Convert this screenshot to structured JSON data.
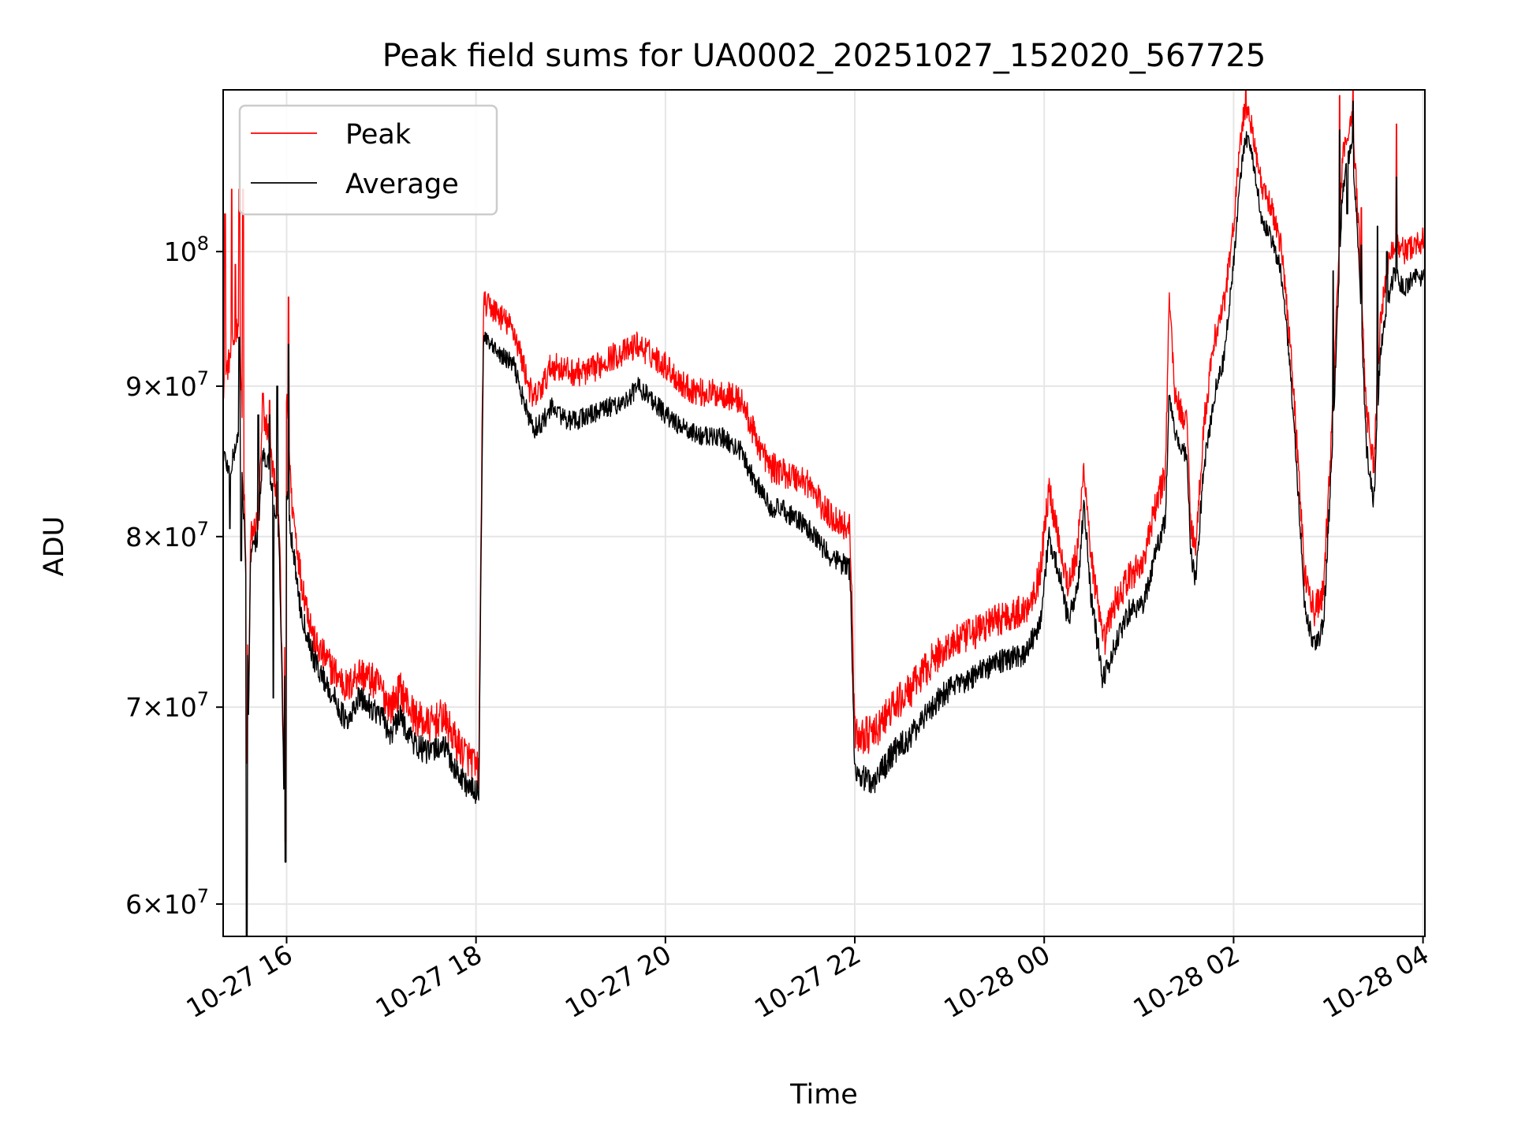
{
  "chart_data": {
    "type": "line",
    "title": "Peak field sums for UA0002_20251027_152020_567725",
    "xlabel": "Time",
    "ylabel": "ADU",
    "yscale": "log",
    "grid": true,
    "xlim": [
      15.33,
      28.02
    ],
    "ylim": [
      58500000,
      113500000
    ],
    "x_unit": "hours since 2025-10-27 00:00",
    "xticks": [
      {
        "value": 16,
        "label": "10-27 16"
      },
      {
        "value": 18,
        "label": "10-27 18"
      },
      {
        "value": 20,
        "label": "10-27 20"
      },
      {
        "value": 22,
        "label": "10-27 22"
      },
      {
        "value": 24,
        "label": "10-28 00"
      },
      {
        "value": 26,
        "label": "10-28 02"
      },
      {
        "value": 28,
        "label": "10-28 04"
      }
    ],
    "yticks": [
      {
        "value": 60000000,
        "base": "6",
        "exp": "7",
        "style": "mult"
      },
      {
        "value": 70000000,
        "base": "7",
        "exp": "7",
        "style": "mult"
      },
      {
        "value": 80000000,
        "base": "8",
        "exp": "7",
        "style": "mult"
      },
      {
        "value": 90000000,
        "base": "9",
        "exp": "7",
        "style": "mult"
      },
      {
        "value": 100000000,
        "base": "10",
        "exp": "8",
        "style": "pow"
      }
    ],
    "legend": {
      "position": "upper-left",
      "entries": [
        "Peak",
        "Average"
      ]
    },
    "series": [
      {
        "name": "Average",
        "color": "#000000",
        "noise": 700000,
        "points": [
          [
            15.33,
            85500000
          ],
          [
            15.4,
            84000000
          ],
          [
            15.5,
            87000000
          ],
          [
            15.56,
            80000000
          ],
          [
            15.6,
            69500000
          ],
          [
            15.62,
            79000000
          ],
          [
            15.7,
            80000000
          ],
          [
            15.75,
            85500000
          ],
          [
            15.8,
            85000000
          ],
          [
            15.85,
            83000000
          ],
          [
            15.92,
            80000000
          ],
          [
            15.97,
            66000000
          ],
          [
            16.0,
            83000000
          ],
          [
            16.05,
            80000000
          ],
          [
            16.15,
            75500000
          ],
          [
            16.3,
            72500000
          ],
          [
            16.5,
            70500000
          ],
          [
            16.65,
            69000000
          ],
          [
            16.75,
            70500000
          ],
          [
            16.9,
            70000000
          ],
          [
            17.0,
            69500000
          ],
          [
            17.1,
            68500000
          ],
          [
            17.2,
            69500000
          ],
          [
            17.35,
            68000000
          ],
          [
            17.5,
            67500000
          ],
          [
            17.65,
            68000000
          ],
          [
            17.8,
            66500000
          ],
          [
            17.97,
            65500000
          ],
          [
            18.03,
            65500000
          ],
          [
            18.08,
            93500000
          ],
          [
            18.2,
            92500000
          ],
          [
            18.4,
            91500000
          ],
          [
            18.5,
            89000000
          ],
          [
            18.6,
            87000000
          ],
          [
            18.7,
            87500000
          ],
          [
            18.8,
            88500000
          ],
          [
            19.0,
            87500000
          ],
          [
            19.2,
            88000000
          ],
          [
            19.4,
            88500000
          ],
          [
            19.6,
            89000000
          ],
          [
            19.7,
            90000000
          ],
          [
            19.8,
            89500000
          ],
          [
            20.0,
            88000000
          ],
          [
            20.2,
            87000000
          ],
          [
            20.4,
            86500000
          ],
          [
            20.6,
            86500000
          ],
          [
            20.8,
            85500000
          ],
          [
            20.95,
            83500000
          ],
          [
            21.1,
            82000000
          ],
          [
            21.3,
            81500000
          ],
          [
            21.5,
            80500000
          ],
          [
            21.7,
            79000000
          ],
          [
            21.95,
            78000000
          ],
          [
            22.0,
            66500000
          ],
          [
            22.2,
            66000000
          ],
          [
            22.4,
            67500000
          ],
          [
            22.6,
            68500000
          ],
          [
            22.8,
            70000000
          ],
          [
            23.0,
            71000000
          ],
          [
            23.2,
            71500000
          ],
          [
            23.5,
            72500000
          ],
          [
            23.8,
            73000000
          ],
          [
            23.95,
            74500000
          ],
          [
            24.05,
            80000000
          ],
          [
            24.15,
            78000000
          ],
          [
            24.25,
            75000000
          ],
          [
            24.35,
            76500000
          ],
          [
            24.42,
            82000000
          ],
          [
            24.5,
            76000000
          ],
          [
            24.62,
            71500000
          ],
          [
            24.75,
            73500000
          ],
          [
            24.9,
            75500000
          ],
          [
            25.05,
            76000000
          ],
          [
            25.2,
            79500000
          ],
          [
            25.28,
            81000000
          ],
          [
            25.32,
            89500000
          ],
          [
            25.38,
            87000000
          ],
          [
            25.45,
            85500000
          ],
          [
            25.5,
            85500000
          ],
          [
            25.55,
            79000000
          ],
          [
            25.6,
            77000000
          ],
          [
            25.68,
            84000000
          ],
          [
            25.8,
            89500000
          ],
          [
            25.9,
            92000000
          ],
          [
            26.0,
            99000000
          ],
          [
            26.05,
            104000000
          ],
          [
            26.1,
            108000000
          ],
          [
            26.13,
            109500000
          ],
          [
            26.2,
            107500000
          ],
          [
            26.3,
            102500000
          ],
          [
            26.4,
            101000000
          ],
          [
            26.5,
            98500000
          ],
          [
            26.6,
            91000000
          ],
          [
            26.68,
            83000000
          ],
          [
            26.75,
            75500000
          ],
          [
            26.85,
            73500000
          ],
          [
            26.95,
            74500000
          ],
          [
            27.05,
            86500000
          ],
          [
            27.15,
            105000000
          ],
          [
            27.25,
            109000000
          ],
          [
            27.32,
            100000000
          ],
          [
            27.4,
            86000000
          ],
          [
            27.48,
            82000000
          ],
          [
            27.55,
            92500000
          ],
          [
            27.62,
            96000000
          ],
          [
            27.7,
            98500000
          ],
          [
            27.8,
            97000000
          ],
          [
            27.9,
            98000000
          ],
          [
            28.02,
            98000000
          ]
        ],
        "spikes": [
          [
            15.4,
            80500000
          ],
          [
            15.5,
            93500000
          ],
          [
            15.52,
            78500000
          ],
          [
            15.58,
            58500000
          ],
          [
            15.7,
            88000000
          ],
          [
            15.78,
            84500000
          ],
          [
            15.82,
            88000000
          ],
          [
            15.86,
            70500000
          ],
          [
            15.9,
            90000000
          ],
          [
            15.99,
            62000000
          ],
          [
            16.02,
            93000000
          ],
          [
            26.15,
            109500000
          ],
          [
            27.05,
            98500000
          ],
          [
            27.12,
            110000000
          ],
          [
            27.2,
            103000000
          ],
          [
            27.26,
            112500000
          ],
          [
            27.35,
            100500000
          ],
          [
            27.43,
            84000000
          ],
          [
            27.52,
            102000000
          ],
          [
            27.62,
            100000000
          ],
          [
            27.72,
            106000000
          ]
        ]
      },
      {
        "name": "Peak",
        "color": "#ff0000",
        "noise": 1000000,
        "points": [
          [
            15.33,
            90000000
          ],
          [
            15.4,
            92000000
          ],
          [
            15.5,
            95000000
          ],
          [
            15.56,
            80500000
          ],
          [
            15.6,
            70000000
          ],
          [
            15.62,
            80000000
          ],
          [
            15.7,
            81000000
          ],
          [
            15.75,
            88000000
          ],
          [
            15.8,
            87000000
          ],
          [
            15.85,
            84500000
          ],
          [
            15.92,
            81500000
          ],
          [
            15.97,
            66500000
          ],
          [
            16.0,
            90000000
          ],
          [
            16.05,
            82500000
          ],
          [
            16.15,
            77500000
          ],
          [
            16.3,
            73500000
          ],
          [
            16.5,
            72000000
          ],
          [
            16.65,
            71000000
          ],
          [
            16.75,
            72000000
          ],
          [
            16.9,
            71500000
          ],
          [
            17.0,
            71000000
          ],
          [
            17.1,
            70000000
          ],
          [
            17.2,
            71000000
          ],
          [
            17.35,
            69500000
          ],
          [
            17.5,
            69000000
          ],
          [
            17.65,
            69500000
          ],
          [
            17.8,
            68000000
          ],
          [
            17.97,
            67000000
          ],
          [
            18.03,
            66500000
          ],
          [
            18.08,
            96000000
          ],
          [
            18.2,
            95500000
          ],
          [
            18.4,
            94000000
          ],
          [
            18.5,
            91500000
          ],
          [
            18.6,
            89000000
          ],
          [
            18.7,
            90000000
          ],
          [
            18.8,
            91500000
          ],
          [
            19.0,
            91000000
          ],
          [
            19.2,
            91000000
          ],
          [
            19.4,
            92000000
          ],
          [
            19.6,
            92500000
          ],
          [
            19.7,
            93000000
          ],
          [
            19.8,
            92500000
          ],
          [
            20.0,
            91500000
          ],
          [
            20.2,
            90000000
          ],
          [
            20.4,
            89500000
          ],
          [
            20.6,
            89500000
          ],
          [
            20.8,
            89000000
          ],
          [
            20.95,
            86500000
          ],
          [
            21.1,
            84500000
          ],
          [
            21.3,
            84000000
          ],
          [
            21.5,
            83500000
          ],
          [
            21.7,
            81500000
          ],
          [
            21.95,
            80500000
          ],
          [
            22.0,
            68500000
          ],
          [
            22.2,
            68500000
          ],
          [
            22.4,
            70000000
          ],
          [
            22.6,
            71000000
          ],
          [
            22.8,
            72500000
          ],
          [
            23.0,
            73500000
          ],
          [
            23.2,
            74000000
          ],
          [
            23.5,
            75000000
          ],
          [
            23.8,
            75500000
          ],
          [
            23.95,
            77500000
          ],
          [
            24.05,
            83000000
          ],
          [
            24.15,
            80000000
          ],
          [
            24.25,
            77000000
          ],
          [
            24.35,
            79000000
          ],
          [
            24.42,
            84500000
          ],
          [
            24.5,
            78500000
          ],
          [
            24.62,
            73500000
          ],
          [
            24.75,
            76000000
          ],
          [
            24.9,
            77500000
          ],
          [
            25.05,
            78500000
          ],
          [
            25.2,
            82500000
          ],
          [
            25.28,
            84000000
          ],
          [
            25.32,
            96500000
          ],
          [
            25.38,
            89500000
          ],
          [
            25.45,
            88000000
          ],
          [
            25.5,
            88000000
          ],
          [
            25.55,
            81000000
          ],
          [
            25.6,
            79000000
          ],
          [
            25.68,
            87000000
          ],
          [
            25.8,
            93500000
          ],
          [
            25.9,
            96000000
          ],
          [
            26.0,
            102000000
          ],
          [
            26.05,
            107000000
          ],
          [
            26.1,
            111000000
          ],
          [
            26.13,
            112000000
          ],
          [
            26.2,
            110000000
          ],
          [
            26.3,
            105000000
          ],
          [
            26.4,
            103500000
          ],
          [
            26.5,
            100500000
          ],
          [
            26.6,
            93000000
          ],
          [
            26.68,
            85000000
          ],
          [
            26.75,
            77500000
          ],
          [
            26.85,
            75500000
          ],
          [
            26.95,
            76500000
          ],
          [
            27.05,
            88500000
          ],
          [
            27.15,
            107500000
          ],
          [
            27.25,
            111500000
          ],
          [
            27.32,
            102000000
          ],
          [
            27.4,
            88500000
          ],
          [
            27.48,
            84500000
          ],
          [
            27.55,
            95000000
          ],
          [
            27.62,
            98500000
          ],
          [
            27.7,
            101000000
          ],
          [
            27.8,
            100000000
          ],
          [
            27.9,
            100500000
          ],
          [
            28.02,
            101000000
          ]
        ],
        "spikes": [
          [
            15.35,
            103000000
          ],
          [
            15.42,
            105000000
          ],
          [
            15.46,
            99000000
          ],
          [
            15.5,
            105000000
          ],
          [
            15.54,
            105000000
          ],
          [
            15.58,
            67000000
          ],
          [
            15.75,
            89500000
          ],
          [
            15.82,
            89000000
          ],
          [
            15.99,
            63000000
          ],
          [
            16.02,
            96500000
          ],
          [
            26.13,
            113500000
          ],
          [
            27.12,
            113000000
          ],
          [
            27.26,
            113500000
          ],
          [
            27.35,
            103500000
          ],
          [
            27.72,
            110500000
          ]
        ]
      }
    ]
  }
}
